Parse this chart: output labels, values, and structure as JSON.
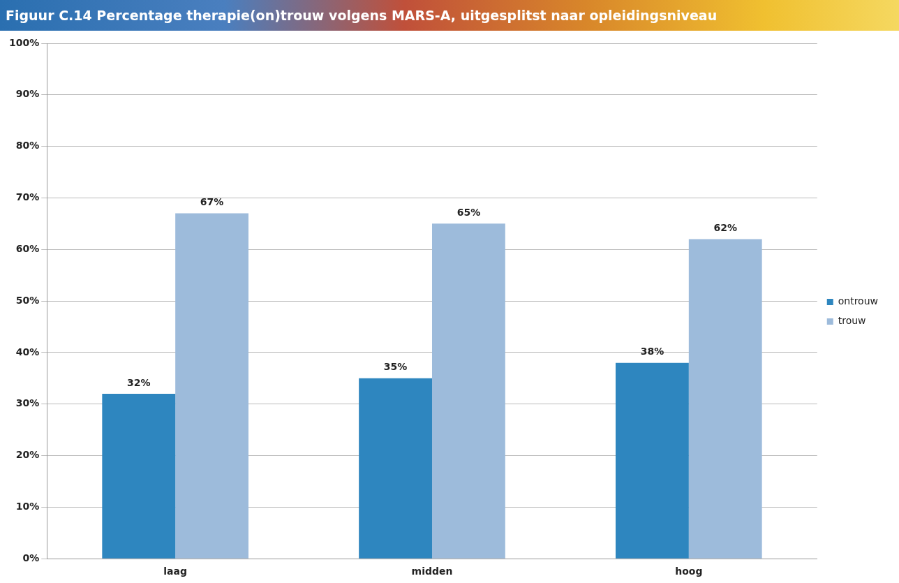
{
  "chart_data": {
    "type": "bar",
    "title": "Figuur C.14 Percentage therapie(on)trouw volgens MARS-A, uitgesplitst naar opleidingsniveau",
    "categories": [
      "laag",
      "midden",
      "hoog"
    ],
    "series": [
      {
        "name": "ontrouw",
        "color": "#2e86bf",
        "values": [
          32,
          35,
          38
        ],
        "value_labels": [
          "32%",
          "35%",
          "38%"
        ]
      },
      {
        "name": "trouw",
        "color": "#9dbbdb",
        "values": [
          67,
          65,
          62
        ],
        "value_labels": [
          "67%",
          "65%",
          "62%"
        ]
      }
    ],
    "ylim": [
      0,
      100
    ],
    "yticks": [
      {
        "value": 0,
        "label": "0%"
      },
      {
        "value": 10,
        "label": "10%"
      },
      {
        "value": 20,
        "label": "20%"
      },
      {
        "value": 30,
        "label": "30%"
      },
      {
        "value": 40,
        "label": "40%"
      },
      {
        "value": 50,
        "label": "50%"
      },
      {
        "value": 60,
        "label": "60%"
      },
      {
        "value": 70,
        "label": "70%"
      },
      {
        "value": 80,
        "label": "80%"
      },
      {
        "value": 90,
        "label": "90%"
      },
      {
        "value": 100,
        "label": "100%"
      }
    ],
    "grid": "y",
    "legend": "right"
  }
}
